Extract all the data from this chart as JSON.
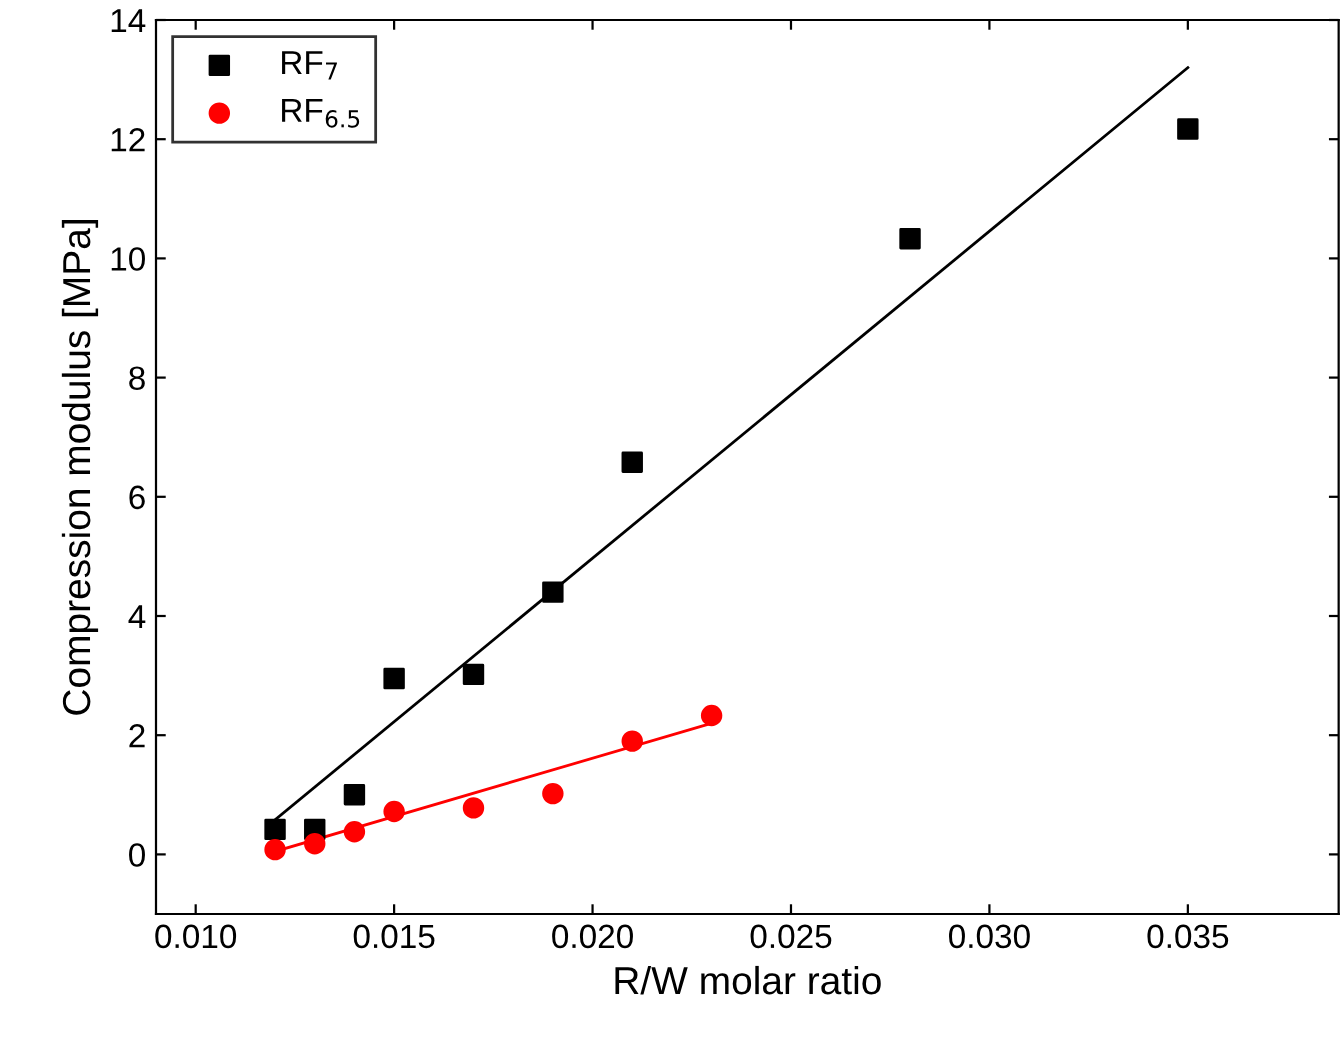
{
  "chart_data": {
    "type": "scatter",
    "xlabel": "R/W molar ratio",
    "ylabel": "Compression modulus [MPa]",
    "xlim": [
      0.009,
      0.0388
    ],
    "ylim": [
      -1,
      14
    ],
    "xticks": [
      {
        "value": 0.01,
        "label": "0.010"
      },
      {
        "value": 0.015,
        "label": "0.015"
      },
      {
        "value": 0.02,
        "label": "0.020"
      },
      {
        "value": 0.025,
        "label": "0.025"
      },
      {
        "value": 0.03,
        "label": "0.030"
      },
      {
        "value": 0.035,
        "label": "0.035"
      }
    ],
    "yticks": [
      0,
      2,
      4,
      6,
      8,
      10,
      12,
      14
    ],
    "legend": "top left",
    "grid": false,
    "series": [
      {
        "name": "RF$_{7}$",
        "marker": "square",
        "color": "#000000",
        "x": [
          0.012,
          0.013,
          0.014,
          0.015,
          0.017,
          0.019,
          0.021,
          0.028,
          0.035
        ],
        "values": [
          0.42,
          0.42,
          1.0,
          2.95,
          3.02,
          4.4,
          6.58,
          10.33,
          12.17
        ]
      },
      {
        "name": "RF$_{6.5}$",
        "marker": "circle",
        "color": "#ff0000",
        "x": [
          0.012,
          0.013,
          0.014,
          0.015,
          0.017,
          0.019,
          0.021,
          0.023
        ],
        "values": [
          0.08,
          0.18,
          0.38,
          0.72,
          0.78,
          1.02,
          1.9,
          2.33
        ]
      },
      {
        "type": "line",
        "marker": "none",
        "color": "#000000",
        "x": [
          0.012,
          0.035
        ],
        "values": [
          0.58,
          13.2
        ]
      },
      {
        "type": "line",
        "marker": "none",
        "color": "#ff0000",
        "x": [
          0.012,
          0.023
        ],
        "values": [
          0.05,
          2.2
        ]
      }
    ]
  }
}
